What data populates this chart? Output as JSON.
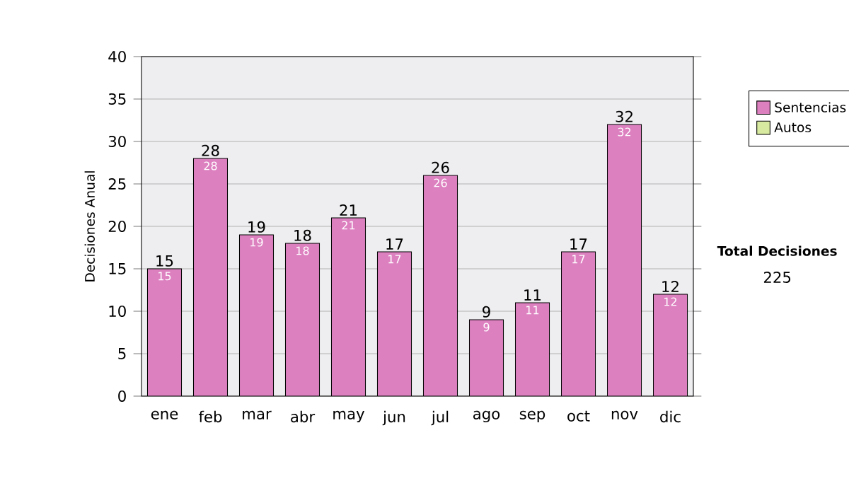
{
  "chart_data": {
    "type": "bar",
    "stacked": true,
    "ylabel": "Decisiones Anual",
    "categories": [
      "ene",
      "feb",
      "mar",
      "abr",
      "may",
      "jun",
      "jul",
      "ago",
      "sep",
      "oct",
      "nov",
      "dic"
    ],
    "series": [
      {
        "name": "Sentencias",
        "color": "#dd80c0",
        "values": [
          15,
          28,
          19,
          18,
          21,
          17,
          26,
          9,
          11,
          17,
          32,
          12
        ],
        "value_labels": [
          "15",
          "28",
          "19",
          "18",
          "21",
          "17",
          "26",
          "9",
          "11",
          "17",
          "32",
          "12"
        ]
      },
      {
        "name": "Autos",
        "color": "#d8eaa0",
        "values": [
          null,
          null,
          null,
          null,
          null,
          null,
          null,
          null,
          null,
          null,
          null,
          null
        ]
      }
    ],
    "totals": [
      "15",
      "28",
      "19",
      "18",
      "21",
      "17",
      "26",
      "9",
      "11",
      "17",
      "32",
      "12"
    ],
    "ylim": [
      0,
      40
    ],
    "yticks": [
      0,
      5,
      10,
      15,
      20,
      25,
      30,
      35,
      40
    ],
    "grid": "y",
    "legend": "right",
    "annotations": [
      "Total Decisiones",
      "225"
    ]
  }
}
